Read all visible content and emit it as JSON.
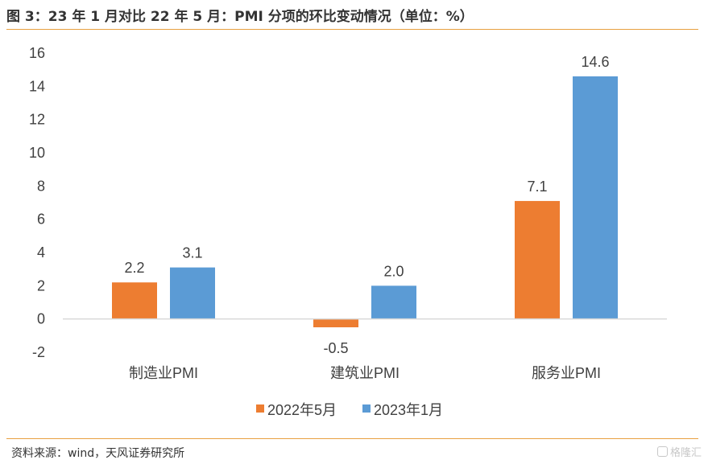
{
  "header": {
    "title": "图 3：23 年 1 月对比 22 年 5 月：PMI 分项的环比变动情况（单位：%）"
  },
  "footer": {
    "source": "资料来源：wind，天风证券研究所",
    "watermark": "格隆汇"
  },
  "colors": {
    "series_2022": "#ed7d31",
    "series_2023": "#5b9bd5",
    "accent_rule": "#e8a040",
    "axis": "#d9d9d9",
    "text": "#404040"
  },
  "chart_data": {
    "type": "bar",
    "categories": [
      "制造业PMI",
      "建筑业PMI",
      "服务业PMI"
    ],
    "series": [
      {
        "name": "2022年5月",
        "values": [
          2.2,
          -0.5,
          7.1
        ],
        "labels": [
          "2.2",
          "-0.5",
          "7.1"
        ]
      },
      {
        "name": "2023年1月",
        "values": [
          3.1,
          2.0,
          14.6
        ],
        "labels": [
          "3.1",
          "2.0",
          "14.6"
        ]
      }
    ],
    "yticks": [
      "16",
      "14",
      "12",
      "10",
      "8",
      "6",
      "4",
      "2",
      "0",
      "-2"
    ],
    "ylim": [
      -2,
      16
    ],
    "grid": false,
    "legend_position": "bottom"
  }
}
